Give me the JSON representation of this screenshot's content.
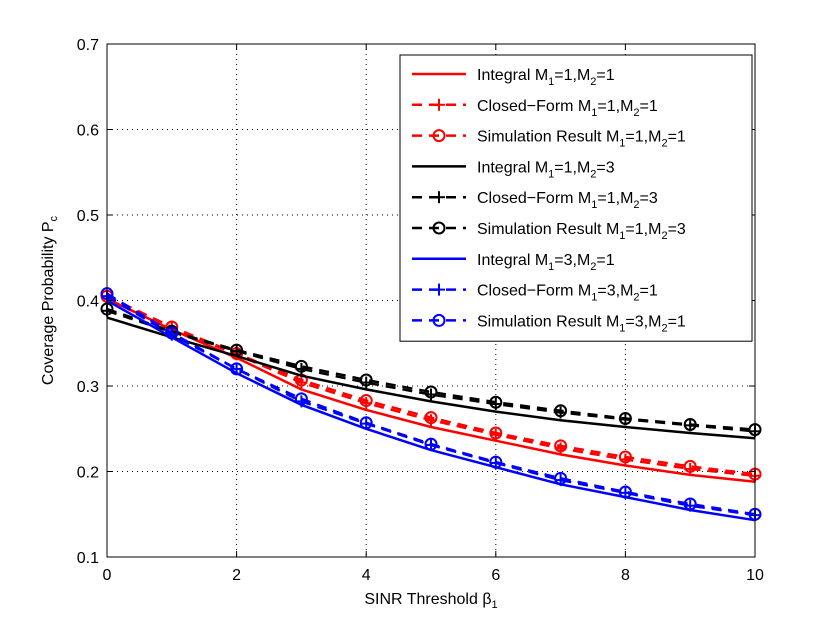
{
  "chart_data": {
    "type": "line",
    "title": "",
    "xlabel": "SINR Threshold",
    "xlabel_symbol": "β",
    "xlabel_sub": "1",
    "ylabel": "Coverage Probability P",
    "ylabel_sub": "c",
    "xlim": [
      0,
      10
    ],
    "ylim": [
      0.1,
      0.7
    ],
    "xticks": [
      0,
      2,
      4,
      6,
      8,
      10
    ],
    "yticks": [
      0.1,
      0.2,
      0.3,
      0.4,
      0.5,
      0.6,
      0.7
    ],
    "grid": true,
    "legend_position": "top-right",
    "x": [
      0,
      1,
      2,
      3,
      4,
      5,
      6,
      7,
      8,
      9,
      10
    ],
    "series": [
      {
        "name": "Integral M1=1,M2=1",
        "label": "Integral M",
        "sub1": "1",
        "mid": ",M",
        "sub2": "2",
        "tail": "=1",
        "lead_sub1": "=1",
        "color": "#ff0000",
        "style": "solid",
        "marker": "none",
        "values": [
          0.402,
          0.366,
          0.333,
          0.296,
          0.272,
          0.252,
          0.236,
          0.22,
          0.207,
          0.196,
          0.188
        ]
      },
      {
        "name": "Closed-Form M1=1,M2=1",
        "label": "Closed−Form M",
        "sub1": "1",
        "mid": ",M",
        "sub2": "2",
        "tail": "=1",
        "lead_sub1": "=1",
        "color": "#ff0000",
        "style": "dashed",
        "marker": "plus",
        "values": [
          0.405,
          0.368,
          0.337,
          0.304,
          0.28,
          0.26,
          0.243,
          0.227,
          0.214,
          0.203,
          0.195
        ]
      },
      {
        "name": "Simulation Result M1=1,M2=1",
        "label": "Simulation Result M",
        "sub1": "1",
        "mid": ",M",
        "sub2": "2",
        "tail": "=1",
        "lead_sub1": "=1",
        "color": "#ff0000",
        "style": "dashed",
        "marker": "circle",
        "values": [
          0.405,
          0.369,
          0.338,
          0.307,
          0.283,
          0.263,
          0.245,
          0.23,
          0.217,
          0.206,
          0.197
        ]
      },
      {
        "name": "Integral M1=1,M2=3",
        "label": "Integral M",
        "sub1": "1",
        "mid": ",M",
        "sub2": "2",
        "tail": "=3",
        "lead_sub1": "=1",
        "color": "#000000",
        "style": "solid",
        "marker": "none",
        "values": [
          0.38,
          0.357,
          0.335,
          0.312,
          0.296,
          0.282,
          0.27,
          0.26,
          0.252,
          0.245,
          0.239
        ]
      },
      {
        "name": "Closed-Form M1=1,M2=3",
        "label": "Closed−Form M",
        "sub1": "1",
        "mid": ",M",
        "sub2": "2",
        "tail": "=3",
        "lead_sub1": "=1",
        "color": "#000000",
        "style": "dashed",
        "marker": "plus",
        "values": [
          0.388,
          0.363,
          0.341,
          0.32,
          0.304,
          0.29,
          0.279,
          0.269,
          0.261,
          0.254,
          0.247
        ]
      },
      {
        "name": "Simulation Result M1=1,M2=3",
        "label": "Simulation Result M",
        "sub1": "1",
        "mid": ",M",
        "sub2": "2",
        "tail": "=3",
        "lead_sub1": "=1",
        "color": "#000000",
        "style": "dashed",
        "marker": "circle",
        "values": [
          0.39,
          0.364,
          0.342,
          0.323,
          0.307,
          0.293,
          0.281,
          0.271,
          0.262,
          0.255,
          0.249
        ]
      },
      {
        "name": "Integral M1=3,M2=1",
        "label": "Integral M",
        "sub1": "1",
        "mid": ",M",
        "sub2": "2",
        "tail": "=1",
        "lead_sub1": "=3",
        "color": "#0000ff",
        "style": "solid",
        "marker": "none",
        "values": [
          0.4,
          0.357,
          0.315,
          0.278,
          0.25,
          0.225,
          0.205,
          0.185,
          0.17,
          0.155,
          0.143
        ]
      },
      {
        "name": "Closed-Form M1=3,M2=1",
        "label": "Closed−Form M",
        "sub1": "1",
        "mid": ",M",
        "sub2": "2",
        "tail": "=1",
        "lead_sub1": "=3",
        "color": "#0000ff",
        "style": "dashed",
        "marker": "plus",
        "values": [
          0.405,
          0.36,
          0.32,
          0.282,
          0.256,
          0.231,
          0.21,
          0.19,
          0.175,
          0.16,
          0.149
        ]
      },
      {
        "name": "Simulation Result M1=3,M2=1",
        "label": "Simulation Result M",
        "sub1": "1",
        "mid": ",M",
        "sub2": "2",
        "tail": "=1",
        "lead_sub1": "=3",
        "color": "#0000ff",
        "style": "dashed",
        "marker": "circle",
        "values": [
          0.408,
          0.362,
          0.32,
          0.285,
          0.257,
          0.232,
          0.211,
          0.192,
          0.176,
          0.162,
          0.15
        ]
      }
    ]
  }
}
